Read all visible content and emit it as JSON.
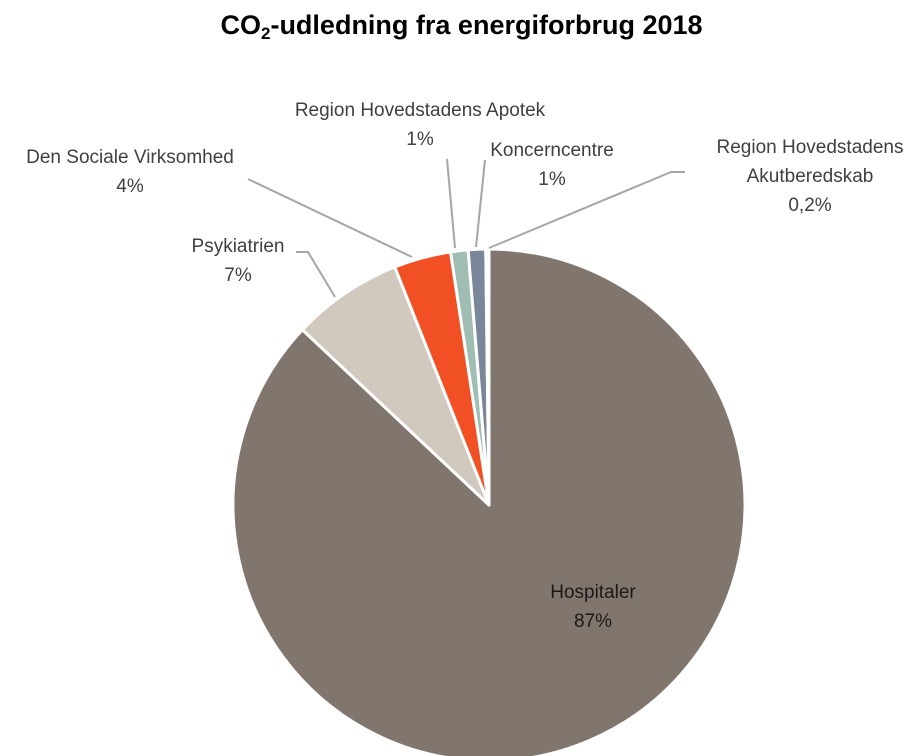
{
  "chart_data": {
    "type": "pie",
    "title": {
      "prefix": "CO",
      "subscript": "2",
      "suffix": "-udledning fra energiforbrug 2018"
    },
    "start_angle_deg": 0,
    "direction": "clockwise",
    "slices": [
      {
        "label_lines": [
          "Hospitaler"
        ],
        "display": "87%",
        "value": 87.0,
        "color": "#81766d"
      },
      {
        "label_lines": [
          "Psykiatrien"
        ],
        "display": "7%",
        "value": 7.0,
        "color": "#d1c8be"
      },
      {
        "label_lines": [
          "Den Sociale Virksomhed"
        ],
        "display": "4%",
        "value": 3.6,
        "color": "#f15025"
      },
      {
        "label_lines": [
          "Region Hovedstadens Apotek"
        ],
        "display": "1%",
        "value": 1.1,
        "color": "#a0bdb4"
      },
      {
        "label_lines": [
          "Koncerncentre"
        ],
        "display": "1%",
        "value": 1.1,
        "color": "#7a879a"
      },
      {
        "label_lines": [
          "Region Hovedstadens",
          "Akutberedskab"
        ],
        "display": "0,2%",
        "value": 0.2,
        "color": "#c3ccd6"
      }
    ]
  }
}
